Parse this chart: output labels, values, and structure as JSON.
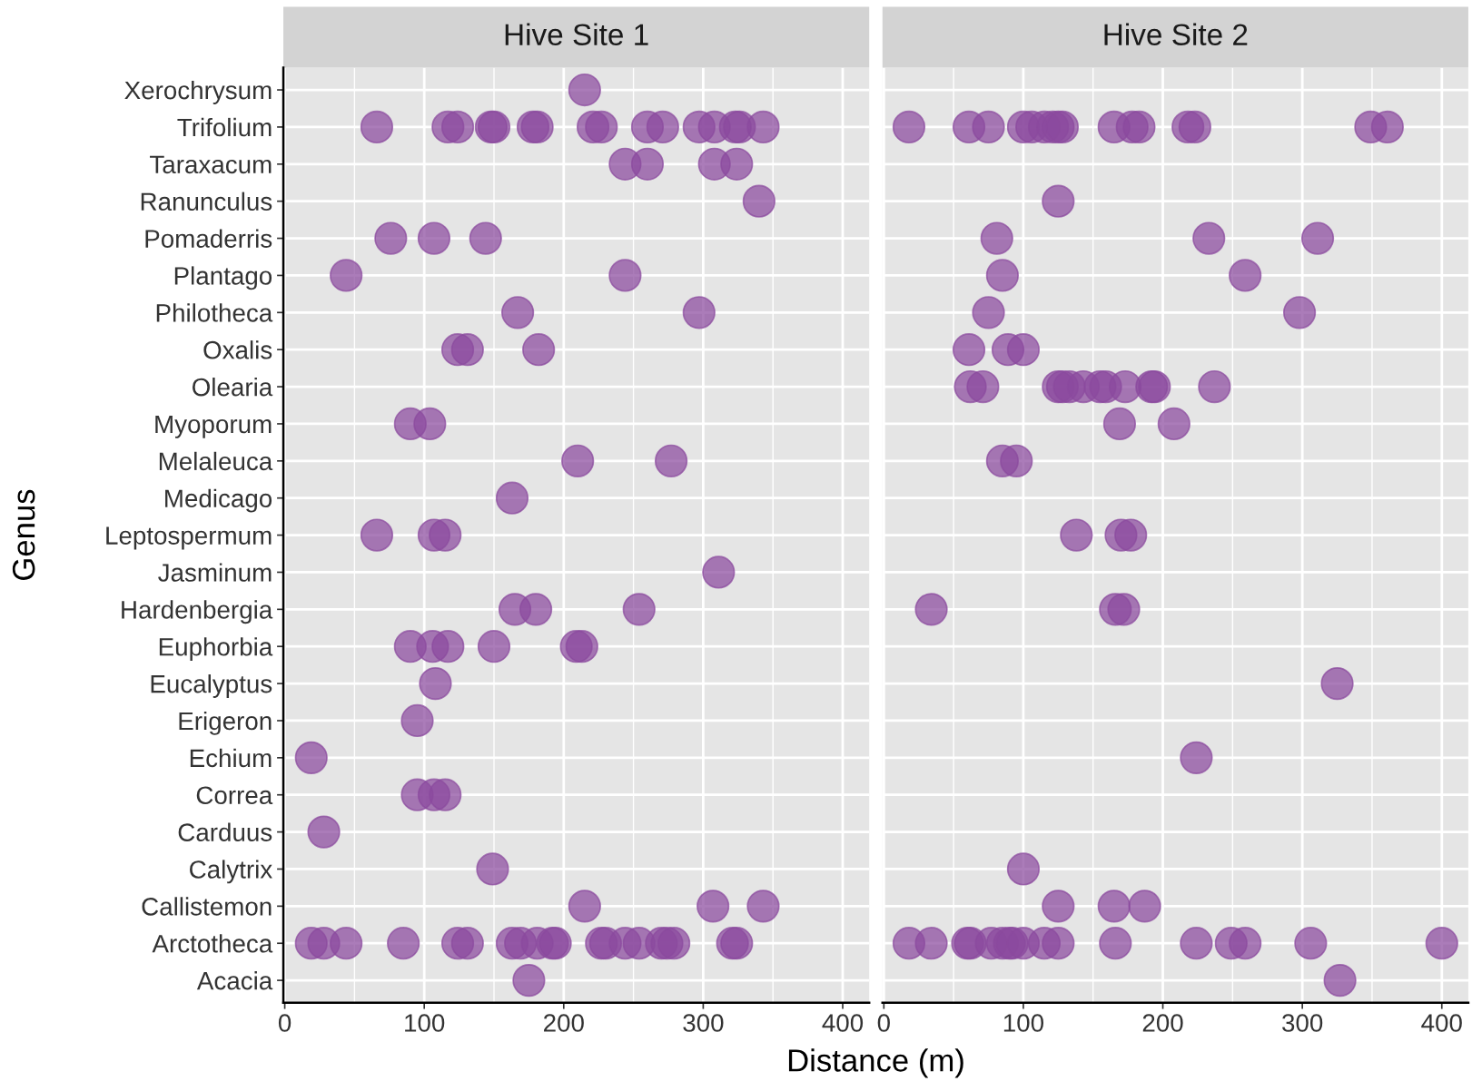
{
  "chart_data": [
    {
      "type": "scatter",
      "orientation": "horizontal",
      "title": "Hive Site 1",
      "xlabel": "Distance (m)",
      "ylabel": "Genus",
      "categories": [
        "Xerochrysum",
        "Trifolium",
        "Taraxacum",
        "Ranunculus",
        "Pomaderris",
        "Plantago",
        "Philotheca",
        "Oxalis",
        "Olearia",
        "Myoporum",
        "Melaleuca",
        "Medicago",
        "Leptospermum",
        "Jasminum",
        "Hardenbergia",
        "Euphorbia",
        "Eucalyptus",
        "Erigeron",
        "Echium",
        "Correa",
        "Carduus",
        "Calytrix",
        "Callistemon",
        "Arctotheca",
        "Acacia"
      ],
      "xlim": [
        -1,
        419
      ],
      "xticks": [
        0,
        100,
        200,
        300,
        400
      ],
      "grid": true,
      "marker": "circle",
      "series": [
        {
          "color": "#8b4a9e",
          "values": [
            215,
            66,
            117,
            124,
            148,
            150,
            178,
            181,
            221,
            227,
            260,
            271,
            297,
            308,
            323,
            326,
            343,
            244,
            260,
            308,
            324,
            340,
            76,
            107,
            144,
            44,
            244,
            167,
            297,
            124,
            131,
            182,
            90,
            104,
            210,
            277,
            163,
            66,
            107,
            115,
            311,
            165,
            180,
            254,
            90,
            106,
            117,
            150,
            209,
            213,
            108,
            95,
            19,
            95,
            107,
            115,
            28,
            149,
            215,
            307,
            343,
            19,
            28,
            44,
            85,
            124,
            131,
            163,
            169,
            181,
            192,
            194,
            227,
            230,
            244,
            254,
            270,
            274,
            279,
            321,
            324,
            175
          ],
          "x": [
            "Xerochrysum",
            "Trifolium",
            "Trifolium",
            "Trifolium",
            "Trifolium",
            "Trifolium",
            "Trifolium",
            "Trifolium",
            "Trifolium",
            "Trifolium",
            "Trifolium",
            "Trifolium",
            "Trifolium",
            "Trifolium",
            "Trifolium",
            "Trifolium",
            "Trifolium",
            "Taraxacum",
            "Taraxacum",
            "Taraxacum",
            "Taraxacum",
            "Ranunculus",
            "Pomaderris",
            "Pomaderris",
            "Pomaderris",
            "Plantago",
            "Plantago",
            "Philotheca",
            "Philotheca",
            "Oxalis",
            "Oxalis",
            "Oxalis",
            "Myoporum",
            "Myoporum",
            "Melaleuca",
            "Melaleuca",
            "Medicago",
            "Leptospermum",
            "Leptospermum",
            "Leptospermum",
            "Jasminum",
            "Hardenbergia",
            "Hardenbergia",
            "Hardenbergia",
            "Euphorbia",
            "Euphorbia",
            "Euphorbia",
            "Euphorbia",
            "Euphorbia",
            "Euphorbia",
            "Eucalyptus",
            "Erigeron",
            "Echium",
            "Correa",
            "Correa",
            "Correa",
            "Carduus",
            "Calytrix",
            "Callistemon",
            "Callistemon",
            "Callistemon",
            "Arctotheca",
            "Arctotheca",
            "Arctotheca",
            "Arctotheca",
            "Arctotheca",
            "Arctotheca",
            "Arctotheca",
            "Arctotheca",
            "Arctotheca",
            "Arctotheca",
            "Arctotheca",
            "Arctotheca",
            "Arctotheca",
            "Arctotheca",
            "Arctotheca",
            "Arctotheca",
            "Arctotheca",
            "Arctotheca",
            "Arctotheca",
            "Arctotheca",
            "Acacia"
          ]
        }
      ]
    },
    {
      "type": "scatter",
      "orientation": "horizontal",
      "title": "Hive Site 2",
      "tick_labels": "x",
      "categories": [
        "Xerochrysum",
        "Trifolium",
        "Taraxacum",
        "Ranunculus",
        "Pomaderris",
        "Plantago",
        "Philotheca",
        "Oxalis",
        "Olearia",
        "Myoporum",
        "Melaleuca",
        "Medicago",
        "Leptospermum",
        "Jasminum",
        "Hardenbergia",
        "Euphorbia",
        "Eucalyptus",
        "Erigeron",
        "Echium",
        "Correa",
        "Carduus",
        "Calytrix",
        "Callistemon",
        "Arctotheca",
        "Acacia"
      ],
      "xlim": [
        -1,
        419
      ],
      "xticks": [
        0,
        100,
        200,
        300,
        400
      ],
      "grid": true,
      "marker": "circle",
      "series": [
        {
          "color": "#8b4a9e",
          "values": [
            18,
            61,
            75,
            100,
            106,
            115,
            121,
            125,
            128,
            165,
            178,
            183,
            218,
            223,
            349,
            361,
            125,
            81,
            233,
            311,
            85,
            259,
            75,
            298,
            61,
            89,
            100,
            62,
            71,
            125,
            128,
            133,
            143,
            155,
            159,
            173,
            192,
            194,
            237,
            169,
            208,
            85,
            95,
            138,
            170,
            177,
            34,
            166,
            172,
            325,
            224,
            100,
            125,
            165,
            187,
            18,
            34,
            60,
            62,
            77,
            85,
            90,
            92,
            100,
            115,
            125,
            166,
            224,
            249,
            259,
            306,
            400,
            327
          ],
          "x": [
            "Trifolium",
            "Trifolium",
            "Trifolium",
            "Trifolium",
            "Trifolium",
            "Trifolium",
            "Trifolium",
            "Trifolium",
            "Trifolium",
            "Trifolium",
            "Trifolium",
            "Trifolium",
            "Trifolium",
            "Trifolium",
            "Trifolium",
            "Trifolium",
            "Ranunculus",
            "Pomaderris",
            "Pomaderris",
            "Pomaderris",
            "Plantago",
            "Plantago",
            "Philotheca",
            "Philotheca",
            "Oxalis",
            "Oxalis",
            "Oxalis",
            "Olearia",
            "Olearia",
            "Olearia",
            "Olearia",
            "Olearia",
            "Olearia",
            "Olearia",
            "Olearia",
            "Olearia",
            "Olearia",
            "Olearia",
            "Olearia",
            "Myoporum",
            "Myoporum",
            "Melaleuca",
            "Melaleuca",
            "Leptospermum",
            "Leptospermum",
            "Leptospermum",
            "Hardenbergia",
            "Hardenbergia",
            "Hardenbergia",
            "Eucalyptus",
            "Echium",
            "Calytrix",
            "Callistemon",
            "Callistemon",
            "Callistemon",
            "Arctotheca",
            "Arctotheca",
            "Arctotheca",
            "Arctotheca",
            "Arctotheca",
            "Arctotheca",
            "Arctotheca",
            "Arctotheca",
            "Arctotheca",
            "Arctotheca",
            "Arctotheca",
            "Arctotheca",
            "Arctotheca",
            "Arctotheca",
            "Arctotheca",
            "Arctotheca",
            "Arctotheca",
            "Acacia"
          ]
        }
      ]
    }
  ]
}
